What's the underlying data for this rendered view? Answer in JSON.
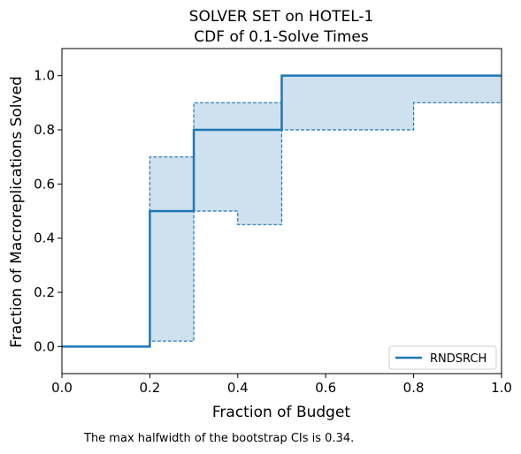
{
  "chart_data": {
    "type": "line",
    "title": "SOLVER SET on HOTEL-1",
    "subtitle": "CDF of 0.1-Solve Times",
    "xlabel": "Fraction of Budget",
    "ylabel": "Fraction of Macroreplications Solved",
    "xlim": [
      0.0,
      1.0
    ],
    "ylim": [
      -0.1,
      1.1
    ],
    "x_ticks": [
      "0.0",
      "0.2",
      "0.4",
      "0.6",
      "0.8",
      "1.0"
    ],
    "y_ticks": [
      "0.0",
      "0.2",
      "0.4",
      "0.6",
      "0.8",
      "1.0"
    ],
    "grid": false,
    "legend_position": "lower-right",
    "series": [
      {
        "name": "RNDSRCH",
        "style": "step",
        "color": "#1f77b4",
        "x": [
          0.0,
          0.2,
          0.3,
          0.5,
          1.0
        ],
        "y": [
          0.0,
          0.5,
          0.8,
          1.0,
          1.0
        ]
      }
    ],
    "confidence_band": {
      "color": "#1f77b4",
      "fill_color": "#cfe1ef",
      "upper": {
        "x": [
          0.0,
          0.2,
          0.3,
          0.5,
          0.8,
          1.0
        ],
        "y": [
          0.0,
          0.7,
          0.9,
          1.0,
          1.0,
          1.0
        ]
      },
      "lower": {
        "x": [
          0.0,
          0.2,
          0.3,
          0.4,
          0.5,
          0.8,
          1.0
        ],
        "y": [
          0.0,
          0.02,
          0.5,
          0.45,
          0.8,
          0.9,
          0.9
        ]
      }
    },
    "annotation": "The max halfwidth of the bootstrap CIs is 0.34."
  }
}
